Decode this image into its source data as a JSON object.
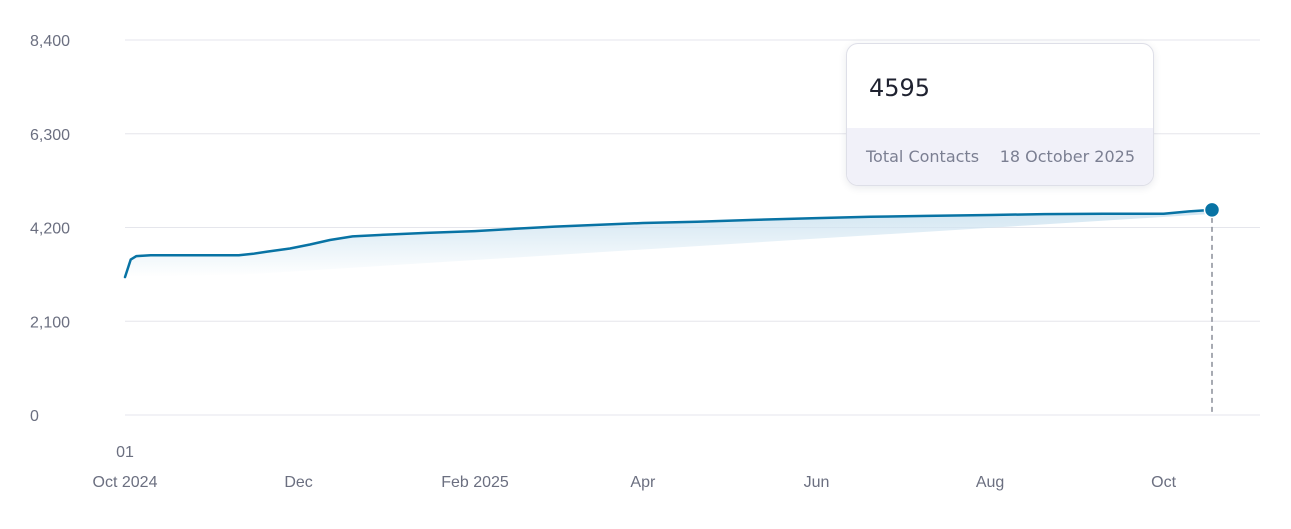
{
  "colors": {
    "line": "#0873a4",
    "area_top": "#cfe4f1",
    "grid": "#e5e6ec",
    "guide": "#8a8d99",
    "axis_text": "#6b6f80"
  },
  "tooltip": {
    "value": "4595",
    "series_label": "Total Contacts",
    "date": "18 October 2025"
  },
  "chart_data": {
    "type": "area",
    "series": [
      {
        "name": "Total Contacts",
        "points": [
          [
            "2024-10-01",
            3090
          ],
          [
            "2024-10-03",
            3480
          ],
          [
            "2024-10-05",
            3560
          ],
          [
            "2024-10-10",
            3580
          ],
          [
            "2024-10-20",
            3580
          ],
          [
            "2024-11-10",
            3580
          ],
          [
            "2024-11-15",
            3610
          ],
          [
            "2024-11-20",
            3660
          ],
          [
            "2024-11-28",
            3730
          ],
          [
            "2024-12-05",
            3820
          ],
          [
            "2024-12-12",
            3920
          ],
          [
            "2024-12-20",
            4000
          ],
          [
            "2025-01-01",
            4040
          ],
          [
            "2025-01-15",
            4080
          ],
          [
            "2025-02-01",
            4120
          ],
          [
            "2025-02-15",
            4170
          ],
          [
            "2025-03-01",
            4220
          ],
          [
            "2025-03-20",
            4270
          ],
          [
            "2025-04-01",
            4300
          ],
          [
            "2025-04-20",
            4330
          ],
          [
            "2025-05-10",
            4370
          ],
          [
            "2025-06-01",
            4410
          ],
          [
            "2025-06-20",
            4440
          ],
          [
            "2025-07-10",
            4460
          ],
          [
            "2025-08-01",
            4480
          ],
          [
            "2025-08-20",
            4500
          ],
          [
            "2025-09-10",
            4510
          ],
          [
            "2025-10-01",
            4510
          ],
          [
            "2025-10-10",
            4560
          ],
          [
            "2025-10-18",
            4595
          ]
        ]
      }
    ],
    "y_ticks": [
      0,
      2100,
      4200,
      6300,
      8400
    ],
    "y_tick_labels": [
      "0",
      "2,100",
      "4,200",
      "6,300",
      "8,400"
    ],
    "ylim": [
      0,
      8400
    ],
    "xlim": [
      "2024-10-01",
      "2025-10-18"
    ],
    "x_ticks": [
      {
        "date": "2024-10-01",
        "label": "01",
        "label2": "Oct 2024"
      },
      {
        "date": "2024-12-01",
        "label": "Dec"
      },
      {
        "date": "2025-02-01",
        "label": "Feb 2025"
      },
      {
        "date": "2025-04-01",
        "label": "Apr"
      },
      {
        "date": "2025-06-01",
        "label": "Jun"
      },
      {
        "date": "2025-08-01",
        "label": "Aug"
      },
      {
        "date": "2025-10-01",
        "label": "Oct"
      }
    ],
    "highlight": {
      "date": "2025-10-18",
      "value": 4595
    },
    "grid": true,
    "legend": "none"
  }
}
